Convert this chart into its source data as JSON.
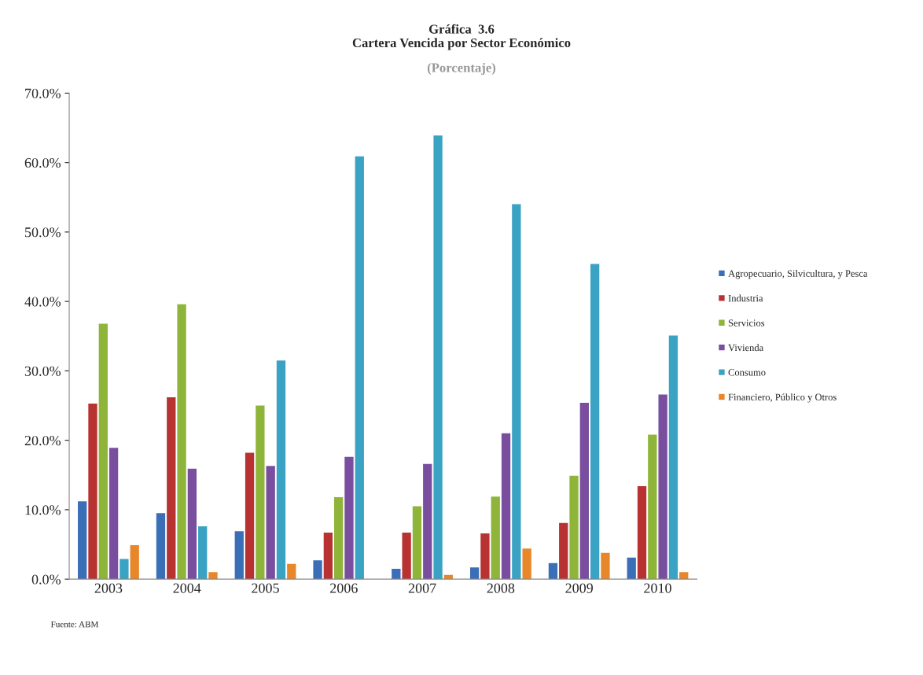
{
  "chart_data": {
    "type": "bar",
    "title": "Gráfica  3.6\nCartera Vencida por Sector Económico",
    "subtitle": "(Porcentaje)",
    "categories": [
      "2003",
      "2004",
      "2005",
      "2006",
      "2007",
      "2008",
      "2009",
      "2010"
    ],
    "series": [
      {
        "name": "Agropecuario, Silvicultura, y Pesca",
        "color": "#3a6fb8",
        "values": [
          11.2,
          9.5,
          6.9,
          2.7,
          1.5,
          1.7,
          2.3,
          3.1
        ]
      },
      {
        "name": "Industria",
        "color": "#b83232",
        "values": [
          25.3,
          26.2,
          18.2,
          6.7,
          6.7,
          6.6,
          8.1,
          13.4
        ]
      },
      {
        "name": "Servicios",
        "color": "#8fb43a",
        "values": [
          36.8,
          39.6,
          25.0,
          11.8,
          10.5,
          11.9,
          14.9,
          20.8
        ]
      },
      {
        "name": "Vivienda",
        "color": "#7a4e9e",
        "values": [
          18.9,
          15.9,
          16.3,
          17.6,
          16.6,
          21.0,
          25.4,
          26.6
        ]
      },
      {
        "name": "Consumo",
        "color": "#3aa3c4",
        "values": [
          2.9,
          7.6,
          31.5,
          60.9,
          63.9,
          54.0,
          45.4,
          35.1
        ]
      },
      {
        "name": "Financiero, Público y Otros",
        "color": "#e8862a",
        "values": [
          4.9,
          1.0,
          2.2,
          0.0,
          0.6,
          4.4,
          3.8,
          1.0
        ]
      }
    ],
    "ylim": [
      0,
      70
    ],
    "yticks": [
      {
        "value": 0,
        "label": "0.0%"
      },
      {
        "value": 10,
        "label": "10.0%"
      },
      {
        "value": 20,
        "label": "20.0%"
      },
      {
        "value": 30,
        "label": "30.0%"
      },
      {
        "value": 40,
        "label": "40.0%"
      },
      {
        "value": 50,
        "label": "50.0%"
      },
      {
        "value": 60,
        "label": "60.0%"
      },
      {
        "value": 70,
        "label": "70.0%"
      }
    ],
    "grid": false,
    "legend": "right",
    "annotations": [
      "Fuente: ABM"
    ]
  }
}
